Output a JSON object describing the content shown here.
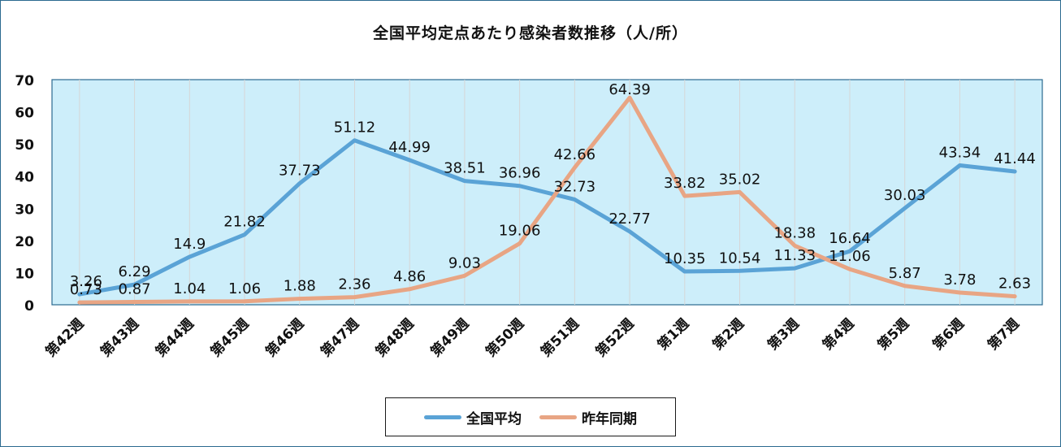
{
  "chart_data": {
    "type": "line",
    "title": "全国平均定点あたり感染者数推移（人/所）",
    "categories": [
      "第42週",
      "第43週",
      "第44週",
      "第45週",
      "第46週",
      "第47週",
      "第48週",
      "第49週",
      "第50週",
      "第51週",
      "第52週",
      "第1週",
      "第2週",
      "第3週",
      "第4週",
      "第5週",
      "第6週",
      "第7週"
    ],
    "series": [
      {
        "name": "全国平均",
        "color": "#5aa3d6",
        "values": [
          3.26,
          6.29,
          14.9,
          21.82,
          37.73,
          51.12,
          44.99,
          38.51,
          36.96,
          32.73,
          22.77,
          10.35,
          10.54,
          11.33,
          16.64,
          30.03,
          43.34,
          41.44
        ]
      },
      {
        "name": "昨年同期",
        "color": "#e8a584",
        "values": [
          0.73,
          0.87,
          1.04,
          1.06,
          1.88,
          2.36,
          4.86,
          9.03,
          19.06,
          42.66,
          64.39,
          33.82,
          35.02,
          18.38,
          11.06,
          5.87,
          3.78,
          2.63
        ]
      }
    ],
    "ylim": [
      0,
      70
    ],
    "yticks": [
      0,
      10,
      20,
      30,
      40,
      50,
      60,
      70
    ],
    "grid": "vertical",
    "legend_position": "bottom",
    "plot_background": "#cdeefa"
  }
}
